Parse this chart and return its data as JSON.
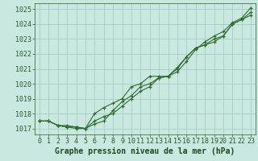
{
  "background_color": "#c8e8e0",
  "plot_bg_color": "#c8e8e0",
  "grid_color": "#a0c8c0",
  "line_color": "#2d6e2d",
  "xlabel": "Graphe pression niveau de la mer (hPa)",
  "ylim": [
    1016.6,
    1025.4
  ],
  "xlim": [
    -0.5,
    23.5
  ],
  "yticks": [
    1017,
    1018,
    1019,
    1020,
    1021,
    1022,
    1023,
    1024,
    1025
  ],
  "xticks": [
    0,
    1,
    2,
    3,
    4,
    5,
    6,
    7,
    8,
    9,
    10,
    11,
    12,
    13,
    14,
    15,
    16,
    17,
    18,
    19,
    20,
    21,
    22,
    23
  ],
  "line1_x": [
    0,
    1,
    2,
    3,
    4,
    5,
    6,
    7,
    8,
    9,
    10,
    11,
    12,
    13,
    14,
    15,
    16,
    17,
    18,
    19,
    20,
    21,
    22,
    23
  ],
  "line1_y": [
    1017.5,
    1017.5,
    1017.2,
    1017.2,
    1017.1,
    1017.0,
    1017.5,
    1017.8,
    1018.0,
    1018.5,
    1019.0,
    1019.5,
    1019.8,
    1020.4,
    1020.5,
    1021.0,
    1021.8,
    1022.4,
    1022.6,
    1023.0,
    1023.2,
    1024.0,
    1024.3,
    1024.8
  ],
  "line2_x": [
    0,
    1,
    2,
    3,
    4,
    5,
    6,
    7,
    8,
    9,
    10,
    11,
    12,
    13,
    14,
    15,
    16,
    17,
    18,
    19,
    20,
    21,
    22,
    23
  ],
  "line2_y": [
    1017.5,
    1017.5,
    1017.2,
    1017.1,
    1017.1,
    1017.0,
    1017.3,
    1017.5,
    1018.2,
    1018.8,
    1019.2,
    1019.8,
    1020.0,
    1020.4,
    1020.5,
    1021.1,
    1021.8,
    1022.4,
    1022.6,
    1022.8,
    1023.2,
    1024.0,
    1024.3,
    1024.6
  ],
  "line3_x": [
    0,
    1,
    2,
    3,
    4,
    5,
    6,
    7,
    8,
    9,
    10,
    11,
    12,
    13,
    14,
    15,
    16,
    17,
    18,
    19,
    20,
    21,
    22,
    23
  ],
  "line3_y": [
    1017.5,
    1017.5,
    1017.2,
    1017.1,
    1017.0,
    1017.0,
    1018.0,
    1018.4,
    1018.7,
    1019.0,
    1019.8,
    1020.0,
    1020.5,
    1020.5,
    1020.5,
    1020.8,
    1021.5,
    1022.3,
    1022.8,
    1023.2,
    1023.5,
    1024.1,
    1024.4,
    1025.1
  ],
  "tick_fontsize": 6,
  "xlabel_fontsize": 7
}
